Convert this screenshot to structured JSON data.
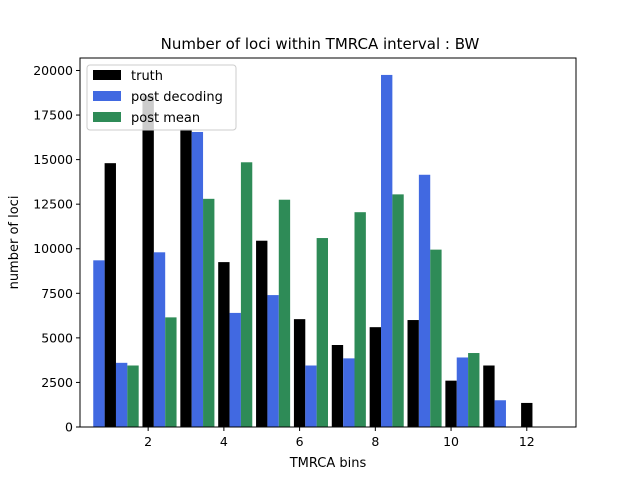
{
  "chart_data": {
    "type": "bar",
    "title": "Number of loci within TMRCA interval : BW",
    "xlabel": "TMRCA bins",
    "ylabel": "number of loci",
    "xlim": [
      0.2,
      13.3
    ],
    "ylim": [
      0,
      20700
    ],
    "xticks": [
      2,
      4,
      6,
      8,
      10,
      12
    ],
    "yticks": [
      0,
      2500,
      5000,
      7500,
      10000,
      12500,
      15000,
      17500,
      20000
    ],
    "x": [
      1,
      2,
      3,
      4,
      5,
      6,
      7,
      8,
      9,
      10,
      11,
      12
    ],
    "bar_width": 0.3,
    "legend_position": "top-left",
    "series": [
      {
        "name": "truth",
        "color": "#000000",
        "offset": 0.0,
        "values": [
          14800,
          18600,
          16700,
          9250,
          10450,
          6050,
          4600,
          5600,
          6000,
          2600,
          3450,
          1350
        ]
      },
      {
        "name": "post decoding",
        "color": "#4169e1",
        "offset": 0.3,
        "values": [
          3600,
          9800,
          16550,
          6400,
          7400,
          3450,
          3850,
          19750,
          14150,
          3900,
          1500,
          0
        ]
      },
      {
        "name": "post mean",
        "color": "#2e8b57",
        "offset": 0.6,
        "values": [
          3450,
          6150,
          12800,
          14850,
          12750,
          10600,
          12050,
          13050,
          9950,
          4150,
          0,
          0
        ]
      }
    ],
    "extra_bars": [
      {
        "series": "post decoding",
        "x": 0.7,
        "value": 9350
      }
    ]
  }
}
